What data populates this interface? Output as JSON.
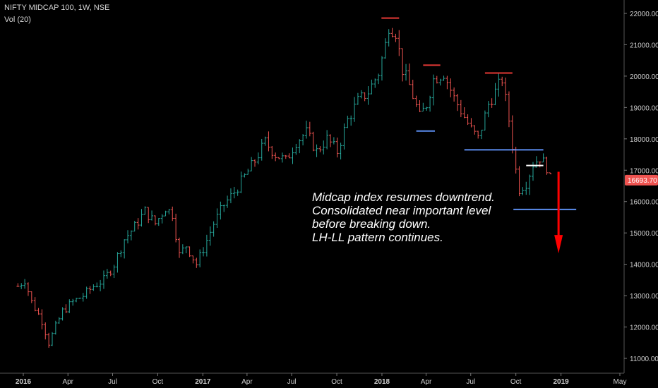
{
  "chart_data": {
    "type": "bar",
    "title": "NIFTY MIDCAP 100, 1W, NSE",
    "indicator": "Vol (20)",
    "y_ticks": [
      "22000.00",
      "21000.00",
      "20000.00",
      "19000.00",
      "18000.00",
      "17000.00",
      "16000.00",
      "15000.00",
      "14000.00",
      "13000.00",
      "12000.00",
      "11000.00"
    ],
    "ylim": [
      10800,
      22300
    ],
    "x_ticks": [
      {
        "label": "2016",
        "bold": true,
        "date": "2016-01-01"
      },
      {
        "label": "Apr",
        "bold": false,
        "date": "2016-04-01"
      },
      {
        "label": "Jul",
        "bold": false,
        "date": "2016-07-01"
      },
      {
        "label": "Oct",
        "bold": false,
        "date": "2016-10-01"
      },
      {
        "label": "2017",
        "bold": true,
        "date": "2017-01-01"
      },
      {
        "label": "Apr",
        "bold": false,
        "date": "2017-04-01"
      },
      {
        "label": "Jul",
        "bold": false,
        "date": "2017-07-01"
      },
      {
        "label": "Oct",
        "bold": false,
        "date": "2017-10-01"
      },
      {
        "label": "2018",
        "bold": true,
        "date": "2018-01-01"
      },
      {
        "label": "Apr",
        "bold": false,
        "date": "2018-04-01"
      },
      {
        "label": "Jul",
        "bold": false,
        "date": "2018-07-01"
      },
      {
        "label": "Oct",
        "bold": false,
        "date": "2018-10-01"
      },
      {
        "label": "2019",
        "bold": true,
        "date": "2019-01-01"
      },
      {
        "label": "May",
        "bold": false,
        "date": "2019-05-01"
      }
    ],
    "last_price": "16693.70",
    "colors": {
      "up": "#26a69a",
      "down": "#ef5350",
      "resistance": "#e53935",
      "support": "#5b8def",
      "consolidation": "#ffffff",
      "arrow": "#ff0000",
      "price_tag": "#ef5350"
    },
    "close_path": [
      {
        "date": "2015-12-21",
        "value": 13300
      },
      {
        "date": "2016-01-04",
        "value": 13500
      },
      {
        "date": "2016-01-18",
        "value": 12800
      },
      {
        "date": "2016-02-08",
        "value": 12200
      },
      {
        "date": "2016-02-22",
        "value": 11500
      },
      {
        "date": "2016-03-07",
        "value": 12000
      },
      {
        "date": "2016-03-21",
        "value": 12500
      },
      {
        "date": "2016-04-11",
        "value": 12800
      },
      {
        "date": "2016-05-02",
        "value": 13000
      },
      {
        "date": "2016-05-23",
        "value": 13300
      },
      {
        "date": "2016-06-13",
        "value": 13500
      },
      {
        "date": "2016-07-04",
        "value": 14000
      },
      {
        "date": "2016-07-25",
        "value": 14800
      },
      {
        "date": "2016-08-15",
        "value": 15200
      },
      {
        "date": "2016-09-05",
        "value": 15700
      },
      {
        "date": "2016-09-26",
        "value": 15300
      },
      {
        "date": "2016-10-17",
        "value": 15800
      },
      {
        "date": "2016-10-31",
        "value": 15600
      },
      {
        "date": "2016-11-14",
        "value": 14300
      },
      {
        "date": "2016-11-28",
        "value": 14600
      },
      {
        "date": "2016-12-19",
        "value": 14000
      },
      {
        "date": "2017-01-02",
        "value": 14500
      },
      {
        "date": "2017-01-23",
        "value": 15300
      },
      {
        "date": "2017-02-13",
        "value": 15900
      },
      {
        "date": "2017-03-06",
        "value": 16300
      },
      {
        "date": "2017-03-27",
        "value": 16800
      },
      {
        "date": "2017-04-17",
        "value": 17300
      },
      {
        "date": "2017-05-08",
        "value": 17900
      },
      {
        "date": "2017-05-29",
        "value": 17500
      },
      {
        "date": "2017-06-19",
        "value": 17300
      },
      {
        "date": "2017-07-10",
        "value": 17900
      },
      {
        "date": "2017-07-31",
        "value": 18200
      },
      {
        "date": "2017-08-21",
        "value": 17600
      },
      {
        "date": "2017-09-11",
        "value": 18000
      },
      {
        "date": "2017-10-02",
        "value": 17600
      },
      {
        "date": "2017-10-23",
        "value": 18600
      },
      {
        "date": "2017-11-13",
        "value": 19200
      },
      {
        "date": "2017-12-04",
        "value": 19500
      },
      {
        "date": "2017-12-25",
        "value": 20100
      },
      {
        "date": "2018-01-08",
        "value": 21000
      },
      {
        "date": "2018-01-15",
        "value": 21600
      },
      {
        "date": "2018-01-29",
        "value": 21400
      },
      {
        "date": "2018-02-12",
        "value": 20200
      },
      {
        "date": "2018-02-26",
        "value": 19700
      },
      {
        "date": "2018-03-19",
        "value": 18700
      },
      {
        "date": "2018-04-02",
        "value": 19100
      },
      {
        "date": "2018-04-16",
        "value": 19900
      },
      {
        "date": "2018-05-07",
        "value": 20100
      },
      {
        "date": "2018-05-28",
        "value": 19300
      },
      {
        "date": "2018-06-18",
        "value": 18700
      },
      {
        "date": "2018-07-02",
        "value": 18300
      },
      {
        "date": "2018-07-16",
        "value": 18000
      },
      {
        "date": "2018-08-06",
        "value": 19100
      },
      {
        "date": "2018-08-27",
        "value": 19700
      },
      {
        "date": "2018-09-03",
        "value": 19900
      },
      {
        "date": "2018-09-17",
        "value": 18600
      },
      {
        "date": "2018-10-01",
        "value": 17000
      },
      {
        "date": "2018-10-08",
        "value": 16400
      },
      {
        "date": "2018-10-22",
        "value": 16600
      },
      {
        "date": "2018-11-05",
        "value": 17200
      },
      {
        "date": "2018-11-19",
        "value": 17400
      },
      {
        "date": "2018-12-03",
        "value": 17100
      },
      {
        "date": "2018-12-10",
        "value": 16700
      }
    ],
    "annotations": {
      "resistance_lines": [
        {
          "from": "2017-12-31",
          "to": "2018-02-05",
          "value": 21850
        },
        {
          "from": "2018-03-26",
          "to": "2018-04-30",
          "value": 20350
        },
        {
          "from": "2018-07-30",
          "to": "2018-09-24",
          "value": 20100
        }
      ],
      "support_lines": [
        {
          "from": "2018-03-12",
          "to": "2018-04-19",
          "value": 18250
        },
        {
          "from": "2018-06-18",
          "to": "2018-11-26",
          "value": 17650
        },
        {
          "from": "2018-09-26",
          "to": "2019-02-01",
          "value": 15750
        }
      ],
      "consolidation_line": {
        "from": "2018-10-22",
        "to": "2018-11-26",
        "value": 17150
      },
      "arrow": {
        "date": "2018-12-27",
        "from": 16950,
        "to": 14350
      },
      "note_lines": [
        "Midcap index resumes downtrend.",
        "Consolidated near important level",
        "before breaking down.",
        "LH-LL pattern continues."
      ]
    }
  }
}
